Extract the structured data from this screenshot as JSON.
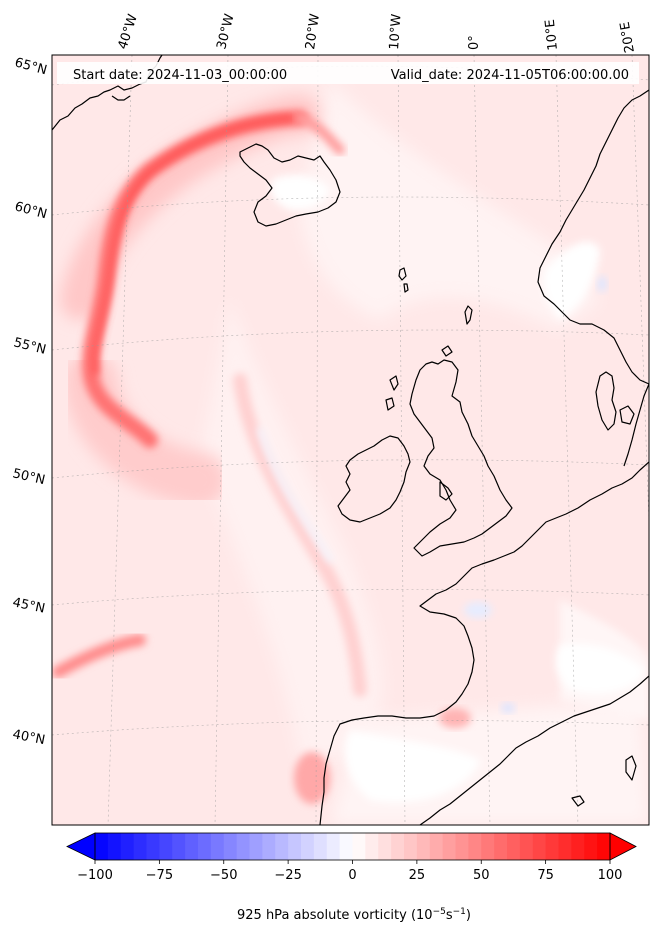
{
  "map": {
    "start_date": "Start date: 2024-11-03_00:00:00",
    "valid_date": "Valid_date: 2024-11-05T06:00:00.00",
    "lon_labels": [
      "40°W",
      "30°W",
      "20°W",
      "10°W",
      "0°",
      "10°E",
      "20°E"
    ],
    "lat_labels": [
      "65°N",
      "60°N",
      "55°N",
      "50°N",
      "45°N",
      "40°N"
    ],
    "field": "925 hPa absolute vorticity",
    "region": "North Atlantic and Western Europe"
  },
  "colorbar": {
    "title": "925 hPa absolute vorticity (10",
    "exp1": "−5",
    "unit_mid": "s",
    "exp2": "−1",
    "close": ")",
    "tick_labels": [
      "−100",
      "−75",
      "−50",
      "−25",
      "0",
      "25",
      "50",
      "75",
      "100"
    ],
    "range": [
      -100,
      100
    ],
    "colormap": "bwr",
    "extend": "both"
  },
  "colors": {
    "land_outline": "#000000",
    "background": "#ffebeb",
    "positive": "#ff0000",
    "negative": "#0000ff"
  }
}
